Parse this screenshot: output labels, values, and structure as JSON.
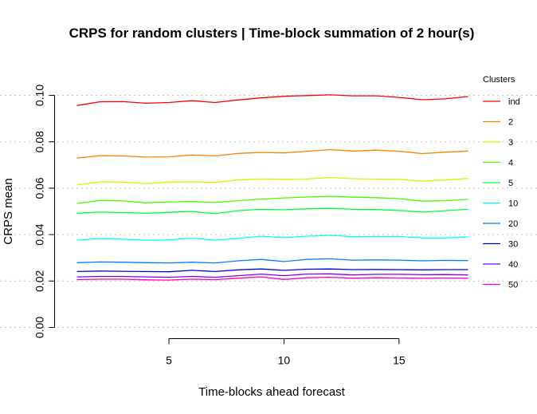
{
  "chart_data": {
    "type": "line",
    "title": "CRPS for random clusters | Time-block summation of 2 hour(s)",
    "xlabel": "Time-blocks ahead forecast",
    "ylabel": "CRPS mean",
    "xlim": [
      1,
      18
    ],
    "ylim": [
      0,
      0.1
    ],
    "x": [
      1,
      2,
      3,
      4,
      5,
      6,
      7,
      8,
      9,
      10,
      11,
      12,
      13,
      14,
      15,
      16,
      17,
      18
    ],
    "x_ticks": [
      5,
      10,
      15
    ],
    "x_tick_labels": [
      "5",
      "10",
      "15"
    ],
    "y_ticks": [
      0,
      0.02,
      0.04,
      0.06,
      0.08,
      0.1
    ],
    "y_tick_labels": [
      "0.00",
      "0.02",
      "0.04",
      "0.06",
      "0.08",
      "0.10"
    ],
    "grid": "horizontal dotted at y ticks",
    "legend": {
      "title": "Clusters",
      "placement": "right"
    },
    "series": [
      {
        "name": "ind",
        "color": "#ff0000",
        "values": [
          0.0956,
          0.0972,
          0.0973,
          0.0966,
          0.0969,
          0.0977,
          0.0969,
          0.098,
          0.0989,
          0.0996,
          0.0999,
          0.1002,
          0.0998,
          0.0998,
          0.0991,
          0.0981,
          0.0985,
          0.0995
        ]
      },
      {
        "name": "2",
        "color": "#ff8000",
        "values": [
          0.073,
          0.074,
          0.0739,
          0.0734,
          0.0735,
          0.0743,
          0.0739,
          0.075,
          0.0754,
          0.0752,
          0.0759,
          0.0766,
          0.076,
          0.0764,
          0.0759,
          0.0749,
          0.0755,
          0.076
        ]
      },
      {
        "name": "3",
        "color": "#c8ff00",
        "values": [
          0.0614,
          0.0627,
          0.0626,
          0.062,
          0.0626,
          0.0627,
          0.0625,
          0.0635,
          0.064,
          0.0638,
          0.064,
          0.0646,
          0.0641,
          0.0639,
          0.0638,
          0.063,
          0.0635,
          0.0642
        ]
      },
      {
        "name": "4",
        "color": "#40ff00",
        "values": [
          0.0534,
          0.0547,
          0.0545,
          0.0537,
          0.0541,
          0.0543,
          0.0538,
          0.0546,
          0.0553,
          0.0558,
          0.0562,
          0.0565,
          0.0561,
          0.0559,
          0.0555,
          0.0544,
          0.0546,
          0.0552
        ]
      },
      {
        "name": "5",
        "color": "#00ff40",
        "values": [
          0.0492,
          0.0497,
          0.0495,
          0.0492,
          0.0496,
          0.05,
          0.049,
          0.0503,
          0.0509,
          0.0507,
          0.0511,
          0.0513,
          0.0509,
          0.0508,
          0.0504,
          0.0497,
          0.0503,
          0.0509
        ]
      },
      {
        "name": "10",
        "color": "#00ffff",
        "values": [
          0.0376,
          0.0383,
          0.038,
          0.0376,
          0.0377,
          0.0385,
          0.0376,
          0.0384,
          0.0393,
          0.0387,
          0.0393,
          0.0397,
          0.0391,
          0.0392,
          0.0392,
          0.0386,
          0.0386,
          0.039
        ]
      },
      {
        "name": "20",
        "color": "#0080ff",
        "values": [
          0.0279,
          0.0282,
          0.0281,
          0.0279,
          0.0278,
          0.0281,
          0.0278,
          0.0287,
          0.0293,
          0.0284,
          0.0293,
          0.0296,
          0.029,
          0.0291,
          0.029,
          0.0287,
          0.0289,
          0.0288
        ]
      },
      {
        "name": "30",
        "color": "#0000ff",
        "values": [
          0.0241,
          0.0243,
          0.0242,
          0.0241,
          0.024,
          0.0246,
          0.0241,
          0.0248,
          0.0252,
          0.0246,
          0.0251,
          0.0252,
          0.0249,
          0.025,
          0.0249,
          0.0248,
          0.0249,
          0.0249
        ]
      },
      {
        "name": "40",
        "color": "#8000ff",
        "values": [
          0.0218,
          0.022,
          0.022,
          0.0218,
          0.0216,
          0.022,
          0.0216,
          0.0223,
          0.023,
          0.0223,
          0.023,
          0.0231,
          0.0226,
          0.0229,
          0.0229,
          0.0227,
          0.0228,
          0.0226
        ]
      },
      {
        "name": "50",
        "color": "#ff00bf",
        "values": [
          0.0206,
          0.0208,
          0.0208,
          0.0205,
          0.0204,
          0.0208,
          0.0206,
          0.0212,
          0.0218,
          0.0207,
          0.0214,
          0.0216,
          0.0212,
          0.0214,
          0.0213,
          0.0212,
          0.0213,
          0.0212
        ]
      }
    ]
  }
}
